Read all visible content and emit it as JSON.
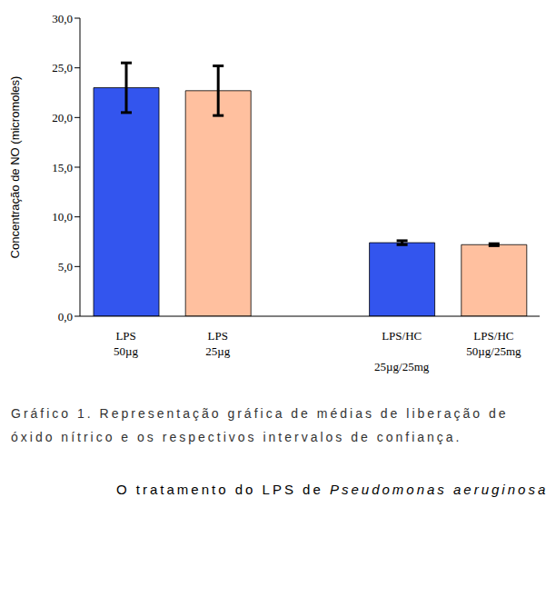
{
  "chart_data": {
    "type": "bar",
    "y_label": "Concentração de NO (micromoles)",
    "categories": [
      "LPS\n50µg",
      "LPS\n25µg",
      null,
      "LPS/HC\n\n25µg/25mg",
      "LPS/HC\n50µg/25mg"
    ],
    "values": [
      23.0,
      22.7,
      null,
      7.4,
      7.2
    ],
    "errors": [
      2.5,
      2.5,
      null,
      0.2,
      0.1
    ],
    "colors": [
      "#3355ee",
      "#ffc09f",
      null,
      "#3355ee",
      "#ffc09f"
    ],
    "ylim": [
      0,
      30
    ],
    "yticks": [
      {
        "value": 0,
        "label": "0,0"
      },
      {
        "value": 5,
        "label": "5,0"
      },
      {
        "value": 10,
        "label": "10,0"
      },
      {
        "value": 15,
        "label": "15,0"
      },
      {
        "value": 20,
        "label": "20,0"
      },
      {
        "value": 25,
        "label": "25,0"
      },
      {
        "value": 30,
        "label": "30,0"
      }
    ],
    "grid": false
  },
  "caption": "Gráfico 1. Representação gráfica de médias de liberação de óxido nítrico e os respectivos intervalos de confiança.",
  "text": [
    "O tratamento do LPS de ",
    "Pseudomonas aeruginosa"
  ]
}
